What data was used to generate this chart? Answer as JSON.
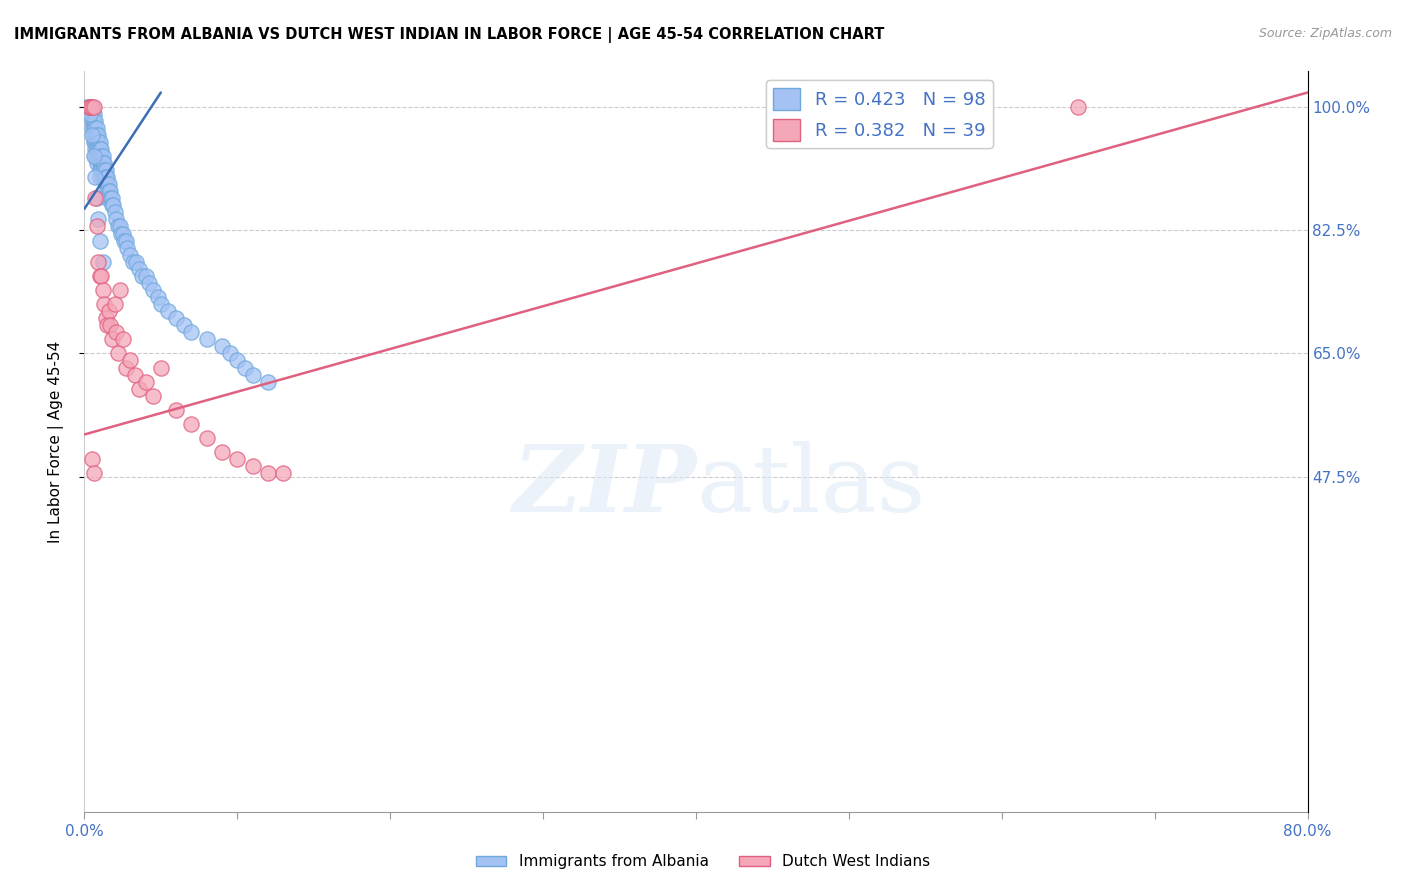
{
  "title": "IMMIGRANTS FROM ALBANIA VS DUTCH WEST INDIAN IN LABOR FORCE | AGE 45-54 CORRELATION CHART",
  "source": "Source: ZipAtlas.com",
  "ylabel_text": "In Labor Force | Age 45-54",
  "xlim": [
    0.0,
    0.8
  ],
  "ylim": [
    0.0,
    1.05
  ],
  "xtick_positions": [
    0.0,
    0.1,
    0.2,
    0.3,
    0.4,
    0.5,
    0.6,
    0.7,
    0.8
  ],
  "xticklabels": [
    "0.0%",
    "",
    "",
    "",
    "",
    "",
    "",
    "",
    "80.0%"
  ],
  "ytick_positions": [
    0.475,
    0.65,
    0.825,
    1.0
  ],
  "ytick_labels": [
    "47.5%",
    "65.0%",
    "82.5%",
    "100.0%"
  ],
  "albania_color": "#a4c2f4",
  "albania_edge": "#6fa8dc",
  "dutch_color": "#f4a7b9",
  "dutch_edge": "#e06080",
  "albania_R": 0.423,
  "albania_N": 98,
  "dutch_R": 0.382,
  "dutch_N": 39,
  "albania_line_color": "#3d6eb5",
  "dutch_line_color": "#e06080",
  "albania_line_x": [
    0.0,
    0.05
  ],
  "albania_line_y": [
    0.855,
    1.02
  ],
  "dutch_line_x": [
    0.0,
    0.8
  ],
  "dutch_line_y": [
    0.535,
    1.02
  ],
  "albania_x": [
    0.002,
    0.003,
    0.004,
    0.004,
    0.005,
    0.005,
    0.005,
    0.005,
    0.006,
    0.006,
    0.006,
    0.006,
    0.006,
    0.007,
    0.007,
    0.007,
    0.007,
    0.007,
    0.007,
    0.008,
    0.008,
    0.008,
    0.008,
    0.008,
    0.008,
    0.009,
    0.009,
    0.009,
    0.009,
    0.01,
    0.01,
    0.01,
    0.01,
    0.01,
    0.01,
    0.011,
    0.011,
    0.011,
    0.011,
    0.012,
    0.012,
    0.012,
    0.012,
    0.013,
    0.013,
    0.013,
    0.014,
    0.014,
    0.014,
    0.015,
    0.015,
    0.015,
    0.015,
    0.016,
    0.016,
    0.017,
    0.017,
    0.018,
    0.018,
    0.019,
    0.02,
    0.021,
    0.022,
    0.023,
    0.024,
    0.025,
    0.026,
    0.027,
    0.028,
    0.03,
    0.032,
    0.034,
    0.036,
    0.038,
    0.04,
    0.042,
    0.045,
    0.048,
    0.05,
    0.055,
    0.06,
    0.065,
    0.07,
    0.08,
    0.09,
    0.095,
    0.1,
    0.105,
    0.11,
    0.12,
    0.004,
    0.005,
    0.006,
    0.007,
    0.008,
    0.009,
    0.01,
    0.012
  ],
  "albania_y": [
    1.0,
    1.0,
    1.0,
    1.0,
    1.0,
    0.99,
    0.98,
    0.97,
    0.99,
    0.98,
    0.97,
    0.96,
    0.95,
    0.98,
    0.97,
    0.96,
    0.95,
    0.94,
    0.93,
    0.97,
    0.96,
    0.95,
    0.94,
    0.93,
    0.92,
    0.96,
    0.95,
    0.94,
    0.93,
    0.95,
    0.94,
    0.93,
    0.92,
    0.91,
    0.9,
    0.94,
    0.93,
    0.92,
    0.91,
    0.93,
    0.92,
    0.91,
    0.9,
    0.92,
    0.91,
    0.9,
    0.91,
    0.9,
    0.89,
    0.9,
    0.89,
    0.88,
    0.87,
    0.89,
    0.88,
    0.88,
    0.87,
    0.87,
    0.86,
    0.86,
    0.85,
    0.84,
    0.83,
    0.83,
    0.82,
    0.82,
    0.81,
    0.81,
    0.8,
    0.79,
    0.78,
    0.78,
    0.77,
    0.76,
    0.76,
    0.75,
    0.74,
    0.73,
    0.72,
    0.71,
    0.7,
    0.69,
    0.68,
    0.67,
    0.66,
    0.65,
    0.64,
    0.63,
    0.62,
    0.61,
    0.99,
    0.96,
    0.93,
    0.9,
    0.87,
    0.84,
    0.81,
    0.78
  ],
  "dutch_x": [
    0.003,
    0.004,
    0.005,
    0.006,
    0.007,
    0.008,
    0.009,
    0.01,
    0.011,
    0.012,
    0.013,
    0.014,
    0.015,
    0.016,
    0.017,
    0.018,
    0.02,
    0.021,
    0.022,
    0.023,
    0.025,
    0.027,
    0.03,
    0.033,
    0.036,
    0.04,
    0.045,
    0.05,
    0.06,
    0.07,
    0.08,
    0.09,
    0.1,
    0.11,
    0.12,
    0.13,
    0.65,
    0.005,
    0.006
  ],
  "dutch_y": [
    1.0,
    1.0,
    1.0,
    1.0,
    0.87,
    0.83,
    0.78,
    0.76,
    0.76,
    0.74,
    0.72,
    0.7,
    0.69,
    0.71,
    0.69,
    0.67,
    0.72,
    0.68,
    0.65,
    0.74,
    0.67,
    0.63,
    0.64,
    0.62,
    0.6,
    0.61,
    0.59,
    0.63,
    0.57,
    0.55,
    0.53,
    0.51,
    0.5,
    0.49,
    0.48,
    0.48,
    1.0,
    0.5,
    0.48
  ]
}
